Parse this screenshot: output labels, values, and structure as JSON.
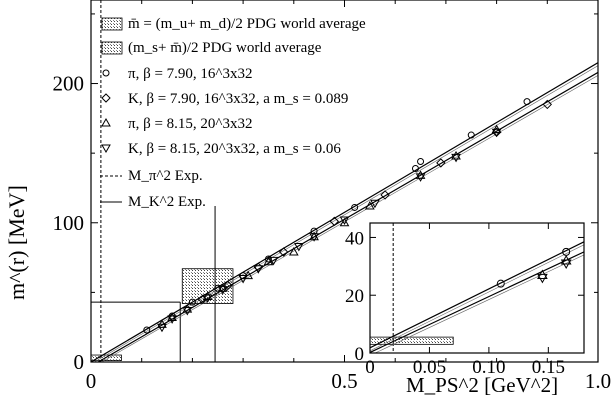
{
  "chart_data": [
    {
      "type": "scatter",
      "xlabel": "M_PS^2 [GeV^2]",
      "ylabel": "m^(r) [MeV]",
      "xlim": [
        0,
        1.0
      ],
      "ylim": [
        0,
        260
      ],
      "xticks": [
        "0",
        "0.5",
        "1.0"
      ],
      "yticks": [
        "0",
        "100",
        "200"
      ],
      "legend_position": "top-left",
      "legend": [
        {
          "label": "m̄ = (m_u+ m_d)/2 PDG world average",
          "symbol": "hatched-box"
        },
        {
          "label": "(m_s+ m̄)/2 PDG world average",
          "symbol": "hatched-box"
        },
        {
          "label": "π, β = 7.90, 16^3x32",
          "symbol": "circle"
        },
        {
          "label": "K, β = 7.90, 16^3x32, a m_s = 0.089",
          "symbol": "diamond"
        },
        {
          "label": "π, β = 8.15, 20^3x32",
          "symbol": "triangle-up"
        },
        {
          "label": "K, β = 8.15, 20^3x32, a m_s = 0.06",
          "symbol": "triangle-down"
        },
        {
          "label": "M_π^2 Exp.",
          "symbol": "dashed-line"
        },
        {
          "label": "M_K^2 Exp.",
          "symbol": "solid-line"
        }
      ],
      "reference_lines": {
        "m_pi_sq_exp": 0.0195,
        "m_k_sq_exp": 0.2447
      },
      "pdg_bands": [
        {
          "name": "m̄ = (m_u+ m_d)/2 PDG world average",
          "x": [
            0.0,
            0.06
          ],
          "y": [
            1,
            5
          ]
        },
        {
          "name": "(m_s+ m̄)/2 PDG world average",
          "x": [
            0.18,
            0.28
          ],
          "y": [
            42,
            67
          ]
        }
      ],
      "fit_lines": [
        {
          "x": [
            0,
            1.0
          ],
          "y": [
            0,
            215
          ]
        },
        {
          "x": [
            0,
            1.0
          ],
          "y": [
            -3,
            208
          ]
        }
      ],
      "series": [
        {
          "name": "π, β = 7.90, 16^3x32",
          "marker": "circle",
          "x": [
            0.11,
            0.16,
            0.2,
            0.25,
            0.3,
            0.35,
            0.44,
            0.52,
            0.64,
            0.65,
            0.75,
            0.86
          ],
          "y": [
            23,
            33,
            43,
            53,
            62,
            74,
            94,
            111,
            139,
            144,
            163,
            187
          ]
        },
        {
          "name": "K, β = 7.90, 16^3x32, a m_s = 0.089",
          "marker": "diamond",
          "x": [
            0.22,
            0.27,
            0.33,
            0.38,
            0.48,
            0.58,
            0.69,
            0.8,
            0.9
          ],
          "y": [
            45,
            55,
            68,
            79,
            101,
            120,
            143,
            165,
            185
          ]
        },
        {
          "name": "π, β = 8.15, 20^3x32",
          "marker": "triangle-up",
          "x": [
            0.14,
            0.16,
            0.19,
            0.23,
            0.26,
            0.31,
            0.35,
            0.4,
            0.44,
            0.5,
            0.55,
            0.65,
            0.72,
            0.8
          ],
          "y": [
            27,
            32,
            38,
            47,
            53,
            62,
            72,
            79,
            90,
            100,
            112,
            134,
            148,
            167
          ]
        },
        {
          "name": "K, β = 8.15, 20^3x32, a m_s = 0.06",
          "marker": "triangle-down",
          "x": [
            0.14,
            0.16,
            0.19,
            0.23,
            0.26,
            0.3,
            0.33,
            0.36,
            0.41,
            0.44,
            0.5,
            0.56,
            0.65,
            0.72,
            0.8
          ],
          "y": [
            25,
            31,
            37,
            46,
            52,
            60,
            67,
            73,
            83,
            90,
            102,
            114,
            133,
            147,
            165
          ]
        }
      ]
    },
    {
      "type": "scatter",
      "inset": true,
      "xlim": [
        0,
        0.18
      ],
      "ylim": [
        0,
        45
      ],
      "xticks": [
        "0",
        "0.05",
        "0.10",
        "0.15"
      ],
      "yticks": [
        "0",
        "20",
        "40"
      ],
      "reference_lines": {
        "m_pi_sq_exp": 0.0195
      },
      "pdg_bands": [
        {
          "name": "m̄ = (m_u+ m_d)/2 PDG world average",
          "x": [
            0.0,
            0.07
          ],
          "y": [
            3,
            5.5
          ]
        }
      ],
      "fit_lines": [
        {
          "x": [
            0,
            0.18
          ],
          "y": [
            1.8,
            38.5
          ]
        },
        {
          "x": [
            0,
            0.18
          ],
          "y": [
            0.2,
            35
          ]
        }
      ],
      "series": [
        {
          "name": "π, β = 7.90, 16^3x32",
          "marker": "circle",
          "x": [
            0.11,
            0.165
          ],
          "y": [
            24,
            35
          ]
        },
        {
          "name": "π, β = 8.15, 20^3x32",
          "marker": "triangle-up",
          "x": [
            0.145,
            0.165
          ],
          "y": [
            27,
            32
          ]
        },
        {
          "name": "K, β = 8.15, 20^3x32, a m_s = 0.06",
          "marker": "triangle-down",
          "x": [
            0.145,
            0.165
          ],
          "y": [
            26,
            31
          ]
        }
      ]
    }
  ]
}
